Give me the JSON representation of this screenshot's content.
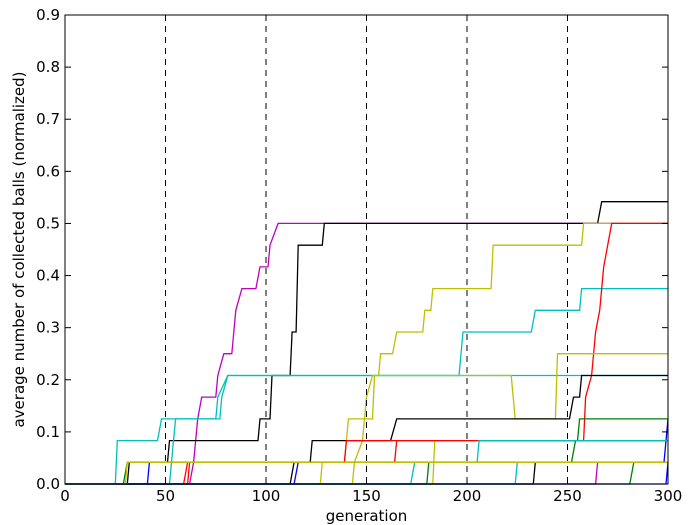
{
  "chart_data": {
    "type": "line",
    "step": true,
    "xlabel": "generation",
    "ylabel": "average number of collected balls (normalized)",
    "xlim": [
      0,
      300
    ],
    "ylim": [
      0,
      0.9
    ],
    "xticks": [
      "0",
      "50",
      "100",
      "150",
      "200",
      "250",
      "300"
    ],
    "yticks": [
      "0.0",
      "0.1",
      "0.2",
      "0.3",
      "0.4",
      "0.5",
      "0.6",
      "0.7",
      "0.8",
      "0.9"
    ],
    "grid": false,
    "vlines": [
      50,
      100,
      150,
      200,
      250
    ],
    "series": [
      {
        "color": "#bf00bf",
        "points": [
          [
            0,
            0
          ],
          [
            62,
            0
          ],
          [
            64,
            0.0417
          ],
          [
            66,
            0.125
          ],
          [
            68,
            0.1667
          ],
          [
            75,
            0.1667
          ],
          [
            76,
            0.2083
          ],
          [
            79,
            0.25
          ],
          [
            83,
            0.25
          ],
          [
            84,
            0.2917
          ],
          [
            85,
            0.3333
          ],
          [
            88,
            0.375
          ],
          [
            95,
            0.375
          ],
          [
            97,
            0.4167
          ],
          [
            101,
            0.4167
          ],
          [
            102,
            0.4583
          ],
          [
            106,
            0.5
          ],
          [
            258,
            0.5
          ],
          [
            300,
            0.5
          ]
        ]
      },
      {
        "color": "#000000",
        "points": [
          [
            0,
            0
          ],
          [
            31,
            0
          ],
          [
            32,
            0.0417
          ],
          [
            51,
            0.0417
          ],
          [
            52,
            0.0833
          ],
          [
            96,
            0.0833
          ],
          [
            97,
            0.125
          ],
          [
            102,
            0.125
          ],
          [
            103,
            0.2083
          ],
          [
            112,
            0.2083
          ],
          [
            113,
            0.2917
          ],
          [
            115,
            0.2917
          ],
          [
            116,
            0.4583
          ],
          [
            128,
            0.4583
          ],
          [
            129,
            0.5
          ],
          [
            265,
            0.5
          ],
          [
            267,
            0.5417
          ],
          [
            300,
            0.5417
          ]
        ]
      },
      {
        "color": "#bfbf00",
        "points": [
          [
            0,
            0
          ],
          [
            127,
            0
          ],
          [
            128,
            0.0417
          ],
          [
            139,
            0.0417
          ],
          [
            141,
            0.125
          ],
          [
            153,
            0.125
          ],
          [
            154,
            0.2083
          ],
          [
            156,
            0.2083
          ],
          [
            157,
            0.25
          ],
          [
            163,
            0.25
          ],
          [
            165,
            0.2917
          ],
          [
            178,
            0.2917
          ],
          [
            179,
            0.3333
          ],
          [
            182,
            0.3333
          ],
          [
            183,
            0.375
          ],
          [
            212,
            0.375
          ],
          [
            213,
            0.4583
          ],
          [
            257,
            0.4583
          ],
          [
            258,
            0.5
          ],
          [
            300,
            0.5
          ]
        ]
      },
      {
        "color": "#00bfbf",
        "points": [
          [
            0,
            0
          ],
          [
            25,
            0
          ],
          [
            26,
            0.0833
          ],
          [
            46,
            0.0833
          ],
          [
            48,
            0.125
          ],
          [
            77,
            0.125
          ],
          [
            78,
            0.1667
          ],
          [
            81,
            0.2083
          ],
          [
            196,
            0.2083
          ],
          [
            198,
            0.2917
          ],
          [
            232,
            0.2917
          ],
          [
            234,
            0.3333
          ],
          [
            256,
            0.3333
          ],
          [
            257,
            0.375
          ],
          [
            300,
            0.375
          ]
        ]
      },
      {
        "color": "#ff0000",
        "points": [
          [
            0,
            0
          ],
          [
            61,
            0
          ],
          [
            62,
            0.0417
          ],
          [
            164,
            0.0417
          ],
          [
            165,
            0.0833
          ],
          [
            258,
            0.0833
          ],
          [
            259,
            0.1667
          ],
          [
            262,
            0.2083
          ],
          [
            264,
            0.2917
          ],
          [
            266,
            0.3333
          ],
          [
            267,
            0.375
          ],
          [
            268,
            0.4167
          ],
          [
            270,
            0.4583
          ],
          [
            272,
            0.5
          ],
          [
            275,
            0.5
          ],
          [
            276,
            0.5
          ],
          [
            300,
            0.5
          ]
        ]
      },
      {
        "color": "#00bfbf",
        "points": [
          [
            0,
            0
          ],
          [
            52,
            0
          ],
          [
            54,
            0.0833
          ],
          [
            55,
            0.125
          ],
          [
            75,
            0.125
          ],
          [
            76,
            0.1667
          ],
          [
            81,
            0.2083
          ],
          [
            300,
            0.2083
          ]
        ]
      },
      {
        "color": "#bfbf00",
        "points": [
          [
            0,
            0
          ],
          [
            143,
            0
          ],
          [
            144,
            0.0417
          ],
          [
            148,
            0.0833
          ],
          [
            150,
            0.1667
          ],
          [
            153,
            0.2083
          ],
          [
            222,
            0.2083
          ],
          [
            224,
            0.125
          ],
          [
            244,
            0.125
          ],
          [
            245,
            0.25
          ],
          [
            300,
            0.25
          ]
        ]
      },
      {
        "color": "#000000",
        "points": [
          [
            0,
            0
          ],
          [
            112,
            0
          ],
          [
            114,
            0.0417
          ],
          [
            122,
            0.0417
          ],
          [
            123,
            0.0833
          ],
          [
            162,
            0.0833
          ],
          [
            165,
            0.125
          ],
          [
            251,
            0.125
          ],
          [
            253,
            0.1667
          ],
          [
            256,
            0.1667
          ],
          [
            257,
            0.2083
          ],
          [
            300,
            0.2083
          ]
        ]
      },
      {
        "color": "#bfbf00",
        "points": [
          [
            0,
            0
          ],
          [
            183,
            0
          ],
          [
            184,
            0.0833
          ],
          [
            300,
            0.0833
          ]
        ]
      },
      {
        "color": "#007f00",
        "points": [
          [
            0,
            0
          ],
          [
            180,
            0
          ],
          [
            181,
            0.0417
          ],
          [
            252,
            0.0417
          ],
          [
            254,
            0.0833
          ],
          [
            255,
            0.0833
          ],
          [
            256,
            0.125
          ],
          [
            300,
            0.125
          ]
        ]
      },
      {
        "color": "#0000ff",
        "points": [
          [
            0,
            0
          ],
          [
            41,
            0
          ],
          [
            42,
            0.0417
          ],
          [
            298,
            0.0417
          ],
          [
            300,
            0.125
          ]
        ]
      },
      {
        "color": "#ff0000",
        "points": [
          [
            0,
            0
          ],
          [
            59,
            0
          ],
          [
            61,
            0.0417
          ],
          [
            139,
            0.0417
          ],
          [
            140,
            0.0833
          ],
          [
            300,
            0.0833
          ]
        ]
      },
      {
        "color": "#00bfbf",
        "points": [
          [
            0,
            0
          ],
          [
            172,
            0
          ],
          [
            174,
            0.0417
          ],
          [
            205,
            0.0417
          ],
          [
            206,
            0.0833
          ],
          [
            300,
            0.0833
          ]
        ]
      },
      {
        "color": "#0000ff",
        "points": [
          [
            0,
            0
          ],
          [
            114,
            0
          ],
          [
            116,
            0.0417
          ],
          [
            300,
            0.0417
          ]
        ]
      },
      {
        "color": "#007f00",
        "points": [
          [
            0,
            0
          ],
          [
            29,
            0
          ],
          [
            31,
            0.0417
          ],
          [
            300,
            0.0417
          ]
        ]
      },
      {
        "color": "#bf00bf",
        "points": [
          [
            0,
            0
          ],
          [
            264,
            0
          ],
          [
            265,
            0.0417
          ],
          [
            300,
            0.0417
          ]
        ]
      },
      {
        "color": "#000000",
        "points": [
          [
            0,
            0
          ],
          [
            233,
            0
          ],
          [
            234,
            0.0417
          ],
          [
            300,
            0.0417
          ]
        ]
      },
      {
        "color": "#00bfbf",
        "points": [
          [
            0,
            0
          ],
          [
            224,
            0
          ],
          [
            225,
            0.0417
          ],
          [
            300,
            0.0417
          ]
        ]
      },
      {
        "color": "#007f00",
        "points": [
          [
            0,
            0
          ],
          [
            281,
            0
          ],
          [
            283,
            0.0417
          ],
          [
            300,
            0.0417
          ]
        ]
      },
      {
        "color": "#bfbf00",
        "points": [
          [
            0,
            0
          ],
          [
            30,
            0
          ],
          [
            31,
            0.0417
          ],
          [
            300,
            0.0417
          ]
        ]
      },
      {
        "color": "#0000ff",
        "points": [
          [
            0,
            0
          ],
          [
            299,
            0
          ],
          [
            300,
            0.0417
          ]
        ]
      }
    ]
  }
}
